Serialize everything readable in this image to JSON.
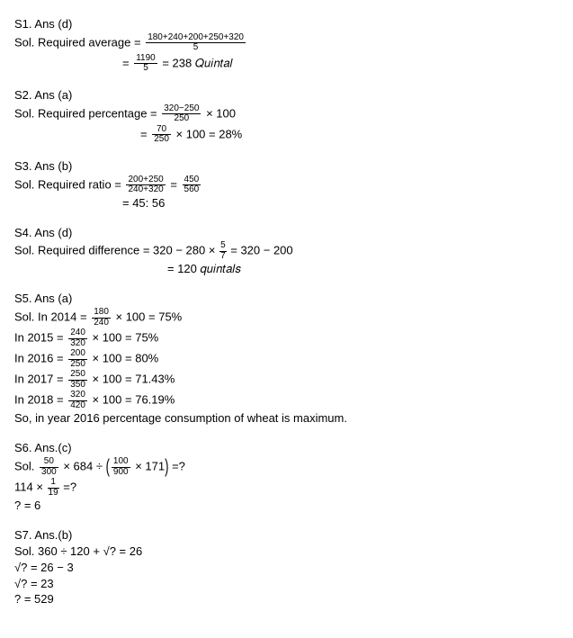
{
  "s1": {
    "header": "S1. Ans (d)",
    "lead": "Sol. Required average = ",
    "frac1_num": "180+240+200+250+320",
    "frac1_den": "5",
    "eq2a": "= ",
    "frac2_num": "1190",
    "frac2_den": "5",
    "eq2b": " = 238 𝑄𝑢𝑖𝑛𝑡𝑎𝑙"
  },
  "s2": {
    "header": "S2. Ans (a)",
    "lead": "Sol. Required percentage = ",
    "frac1_num": "320−250",
    "frac1_den": "250",
    "tail1": " × 100",
    "eq2a": "= ",
    "frac2_num": "70",
    "frac2_den": "250",
    "eq2b": " × 100 = 28%"
  },
  "s3": {
    "header": "S3. Ans (b)",
    "lead": "Sol. Required ratio = ",
    "frac1_num": "200+250",
    "frac1_den": "240+320",
    "mid": " = ",
    "frac2_num": "450",
    "frac2_den": "560",
    "res": "= 45: 56"
  },
  "s4": {
    "header": "S4. Ans (d)",
    "lead": "Sol. Required difference = 320 − 280 × ",
    "frac_num": "5",
    "frac_den": "7",
    "tail": " = 320 − 200",
    "res": "= 120 𝑞𝑢𝑖𝑛𝑡𝑎𝑙𝑠"
  },
  "s5": {
    "header": "S5. Ans (a)",
    "l2014a": "Sol. In 2014 = ",
    "l2014_num": "180",
    "l2014_den": "240",
    "l2014b": " × 100 = 75%",
    "l2015a": "In 2015 = ",
    "l2015_num": "240",
    "l2015_den": "320",
    "l2015b": " × 100 = 75%",
    "l2016a": "In 2016 = ",
    "l2016_num": "200",
    "l2016_den": "250",
    "l2016b": " × 100 = 80%",
    "l2017a": "In 2017 = ",
    "l2017_num": "250",
    "l2017_den": "350",
    "l2017b": " × 100 = 71.43%",
    "l2018a": "In 2018 = ",
    "l2018_num": "320",
    "l2018_den": "420",
    "l2018b": " × 100 = 76.19%",
    "conc": "So, in year 2016 percentage consumption of wheat is maximum."
  },
  "s6": {
    "header": "S6. Ans.(c)",
    "lead": "Sol. ",
    "f1_num": "50",
    "f1_den": "300",
    "mid1": " × 684 ÷ ",
    "f2_num": "100",
    "f2_den": "900",
    "mid2": " × 171",
    "tail": " =?",
    "l2a": "114 × ",
    "f3_num": "1",
    "f3_den": "19",
    "l2b": " =?",
    "l3": "? = 6"
  },
  "s7": {
    "header": "S7. Ans.(b)",
    "l1": "Sol. 360 ÷ 120 + √? = 26",
    "l2": "√? = 26 − 3",
    "l3": "√? = 23",
    "l4": "? = 529"
  }
}
